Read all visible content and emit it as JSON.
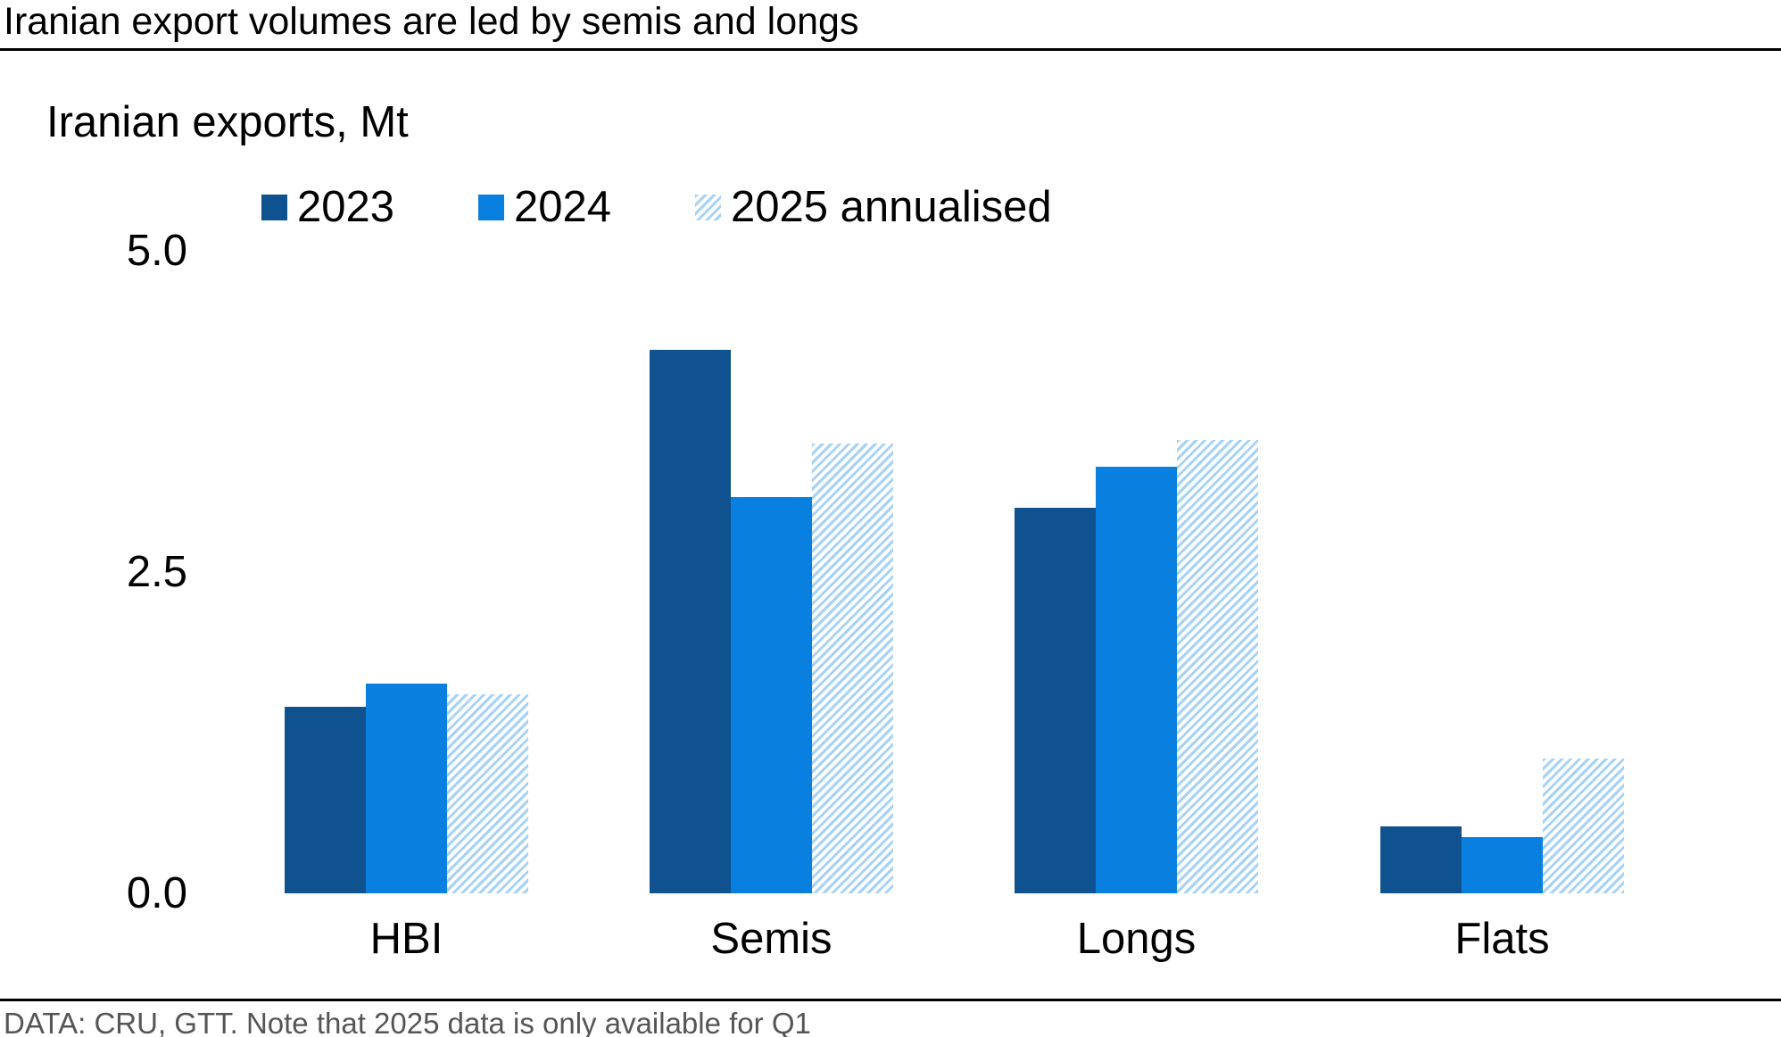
{
  "page": {
    "title": "Iranian export volumes are led by semis and longs",
    "subtitle": "Iranian exports, Mt",
    "footnote": "DATA: CRU, GTT. Note that 2025 data is only available for Q1"
  },
  "colors": {
    "series_2023": "#0F528F",
    "series_2024": "#0980E0",
    "series_2025_hatch": "#A5D2F6",
    "footnote_text": "#555555",
    "rules": "#000000"
  },
  "chart_data": {
    "type": "bar",
    "title": "Iranian export volumes are led by semis and longs",
    "subtitle": "Iranian exports, Mt",
    "unit": "Mt",
    "categories": [
      "HBI",
      "Semis",
      "Longs",
      "Flats"
    ],
    "series": [
      {
        "name": "2023",
        "color": "#0F528F",
        "hatch": false,
        "values": [
          1.45,
          4.23,
          3.0,
          0.52
        ]
      },
      {
        "name": "2024",
        "color": "#0980E0",
        "hatch": false,
        "values": [
          1.63,
          3.08,
          3.32,
          0.44
        ]
      },
      {
        "name": "2025 annualised",
        "color": "#A5D2F6",
        "hatch": true,
        "values": [
          1.55,
          3.5,
          3.53,
          1.05
        ]
      }
    ],
    "ylim": [
      0,
      5
    ],
    "ytick_values": [
      0,
      2.5,
      5
    ],
    "ytick_labels": [
      "0.0",
      "2.5",
      "5.0"
    ],
    "grid": false,
    "legend_position": "top",
    "footnote": "DATA: CRU, GTT. Note that 2025 data is only available for Q1"
  }
}
